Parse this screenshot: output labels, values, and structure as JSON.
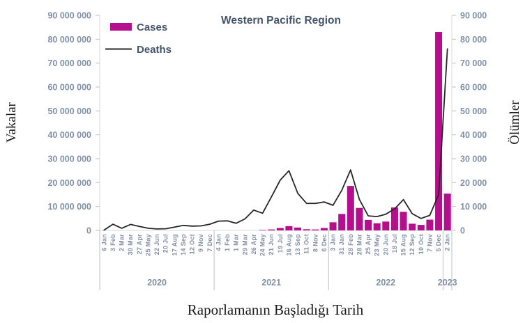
{
  "chart_data": {
    "type": "bar+line",
    "title": "Western Pacific Region",
    "xlabel": "Raporlamanın Başladığı Tarih",
    "ylabel_left": "Vakalar",
    "ylabel_right": "Ölümler",
    "ylim_left": [
      0,
      90000000
    ],
    "ylim_right": [
      0,
      90000
    ],
    "y_ticks_left": [
      "0",
      "10 000 000",
      "20 000 000",
      "30 000 000",
      "40 000 000",
      "50 000 000",
      "60 000 000",
      "70 000 000",
      "80 000 000",
      "90 000 000"
    ],
    "y_ticks_right": [
      "0",
      "10 000",
      "20 000",
      "30 000",
      "40 000",
      "50 000",
      "60 000",
      "70 000",
      "80 000",
      "90 000"
    ],
    "grid": false,
    "legend_position": "top-left-inside",
    "categories": [
      "6 Jan",
      "3 Feb",
      "2 Mar",
      "30 Mar",
      "27 Apr",
      "25 May",
      "22 Jun",
      "20 Jul",
      "17 Aug",
      "14 Sep",
      "12 Oct",
      "9 Nov",
      "7 Dec",
      "4 Jan",
      "1 Feb",
      "1 Mar",
      "29 Mar",
      "26 Apr",
      "24 May",
      "21 Jun",
      "19 Jul",
      "16 Aug",
      "13 Sep",
      "11 Oct",
      "8 Nov",
      "6 Dec",
      "3 Jan",
      "31 Jan",
      "28 Feb",
      "28 Mar",
      "25 Apr",
      "23 May",
      "20 Jun",
      "18 Jul",
      "15 Aug",
      "12 Sep",
      "10 Oct",
      "7 Nov",
      "5 Dec",
      "2 Jan"
    ],
    "year_groups": [
      {
        "label": "2020",
        "count": 13
      },
      {
        "label": "2021",
        "count": 13
      },
      {
        "label": "2022",
        "count": 13
      },
      {
        "label": "2023",
        "count": 1
      }
    ],
    "series": [
      {
        "name": "Cases",
        "type": "bar",
        "axis": "left",
        "color": "#b50f8e",
        "values": [
          0,
          0,
          0,
          0,
          0,
          0,
          0,
          0,
          0,
          0,
          0,
          0,
          0,
          0,
          0,
          0,
          0,
          0,
          200000,
          400000,
          1000000,
          1800000,
          1200000,
          500000,
          400000,
          1000000,
          3400000,
          6900000,
          18600000,
          9400000,
          4400000,
          3000000,
          3700000,
          9600000,
          7800000,
          2800000,
          2300000,
          4500000,
          83000000,
          15400000
        ]
      },
      {
        "name": "Deaths",
        "type": "line",
        "axis": "right",
        "color": "#262626",
        "values": [
          150,
          2600,
          900,
          2500,
          1700,
          900,
          600,
          700,
          1400,
          2100,
          1800,
          1900,
          2600,
          3900,
          4000,
          3000,
          4800,
          8500,
          7200,
          14000,
          21000,
          25000,
          15500,
          11300,
          11300,
          11900,
          10500,
          16800,
          25300,
          13000,
          6100,
          5800,
          6800,
          9000,
          12900,
          7000,
          5000,
          6300,
          15000,
          76000
        ]
      }
    ]
  },
  "colors": {
    "bar": "#b50f8e",
    "line": "#262626",
    "axis_text": "#8290a8",
    "heading_text": "#44546a",
    "axis_line": "#d9d9d9",
    "tick_mark": "#bfbfbf",
    "separator": "#bfbfbf"
  }
}
